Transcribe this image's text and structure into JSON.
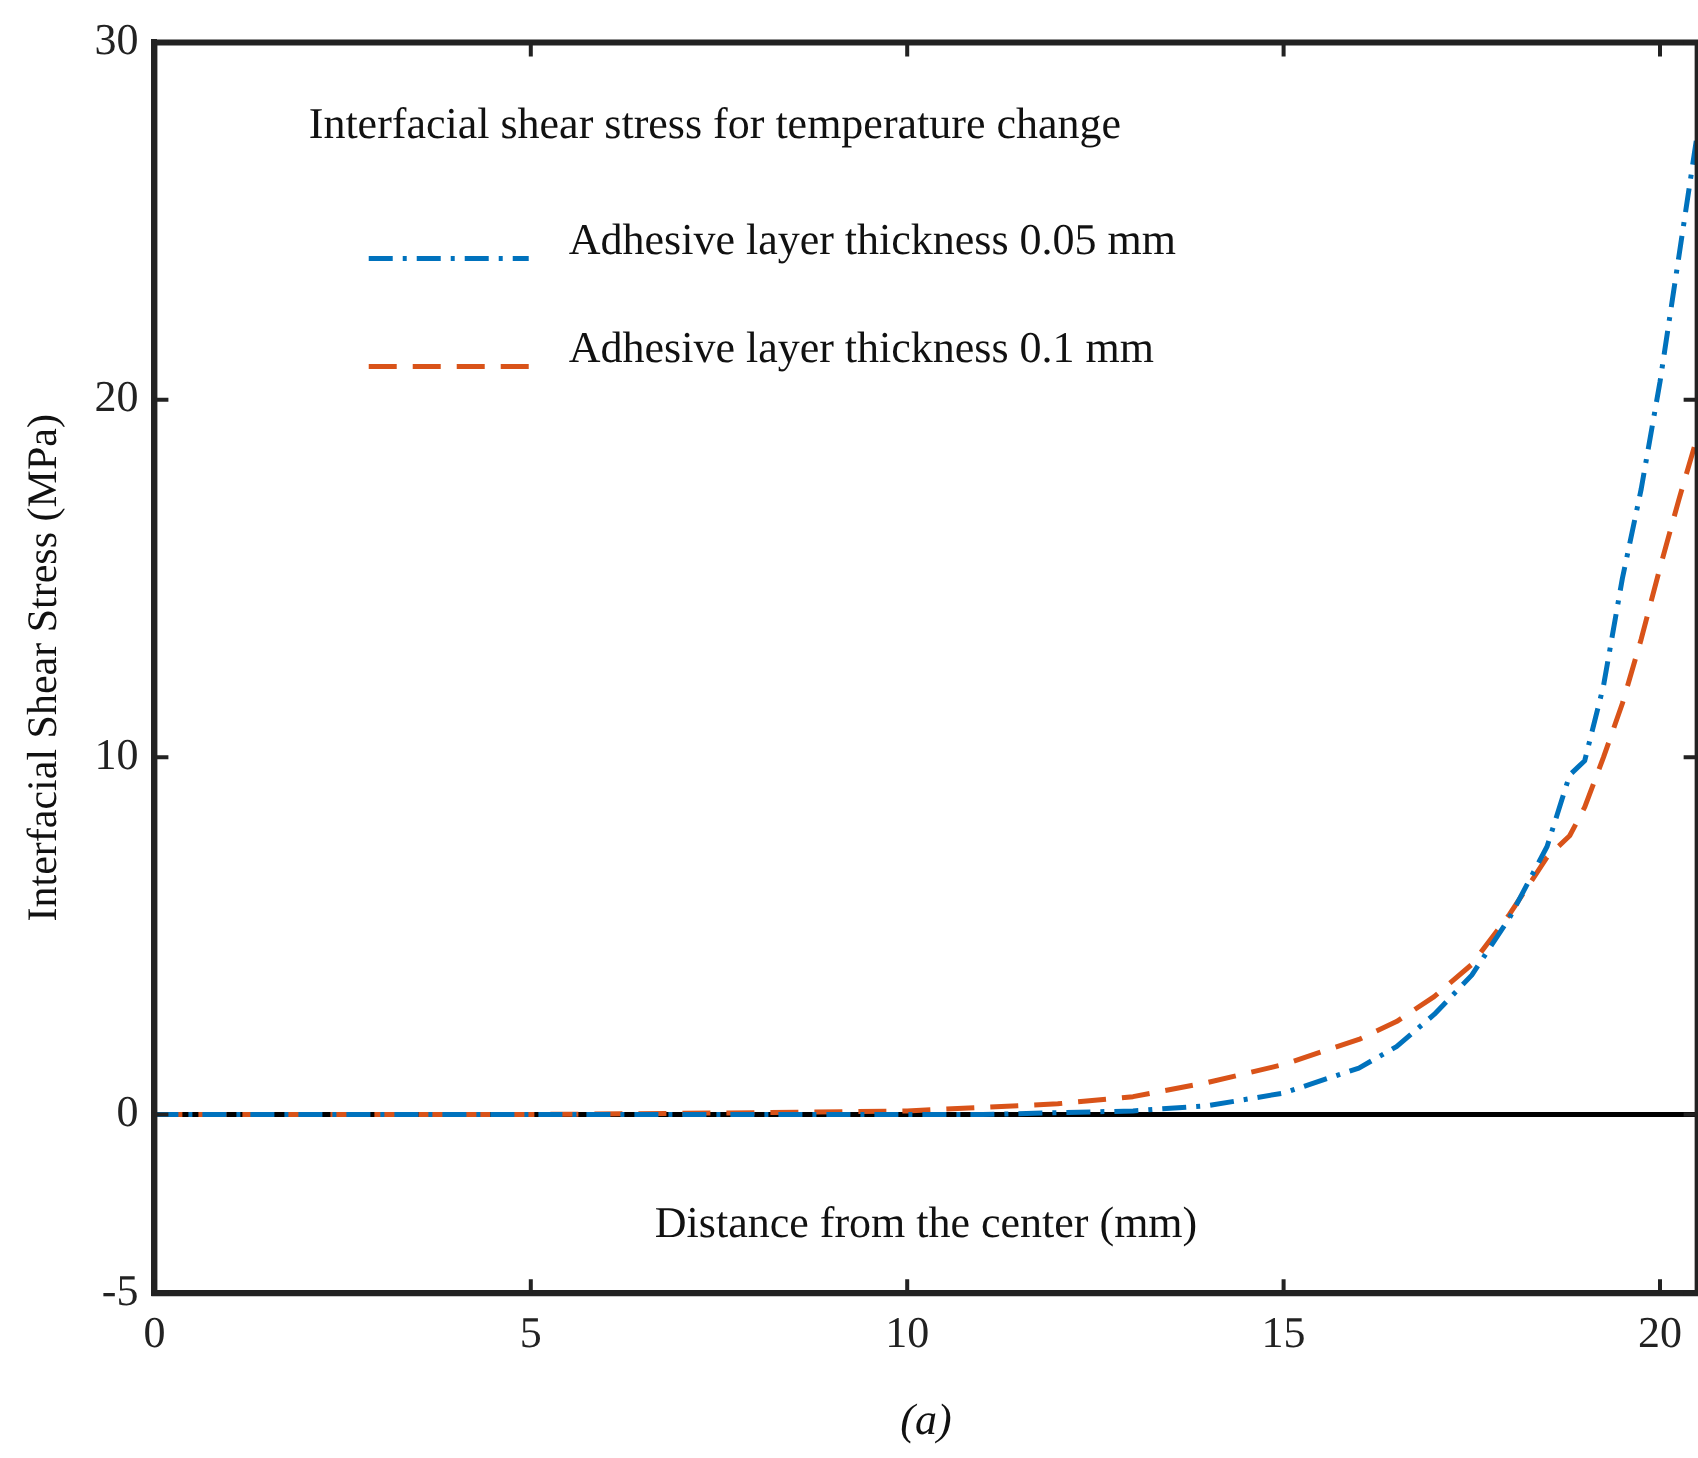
{
  "chart_data": {
    "type": "line",
    "legend_title": "Interfacial shear stress for temperature change",
    "xlabel": "Distance from the center (mm)",
    "ylabel": "Interfacial Shear Stress (MPa)",
    "annotations": [
      "(a)"
    ],
    "x": [
      0,
      1,
      5,
      8,
      10,
      11,
      12,
      13,
      14,
      15,
      16,
      16.5,
      17,
      17.5,
      18,
      18.5,
      18.8,
      19,
      19.25,
      19.5,
      19.75,
      20,
      20.25,
      20.5
    ],
    "series": [
      {
        "name": "Adhesive layer thickness 0.05 mm",
        "color": "#0072bd",
        "line_style": "dashdot",
        "values": [
          0,
          0,
          0,
          0,
          0,
          0,
          0.05,
          0.1,
          0.25,
          0.6,
          1.3,
          1.9,
          2.8,
          3.9,
          5.5,
          7.5,
          9.5,
          9.9,
          12,
          15,
          17.5,
          20.5,
          24,
          27.5
        ]
      },
      {
        "name": "Adhesive layer thickness 0.1 mm",
        "color": "#d95319",
        "line_style": "dashed",
        "values": [
          0,
          0,
          0,
          0.05,
          0.1,
          0.2,
          0.3,
          0.5,
          0.9,
          1.4,
          2.1,
          2.6,
          3.3,
          4.2,
          5.6,
          7.2,
          7.8,
          8.6,
          10,
          11.5,
          13.3,
          15.3,
          17.2,
          19
        ]
      }
    ],
    "xlim": [
      0,
      20.5
    ],
    "xticks": [
      0,
      5,
      10,
      15,
      20
    ],
    "ylim": [
      -5,
      30
    ],
    "yticks": [
      -5,
      0,
      10,
      20,
      30
    ],
    "ref_lines": [
      {
        "axis": "y",
        "value": 0,
        "color": "#000000"
      }
    ],
    "grid": false,
    "legend": "top",
    "marker": "none"
  }
}
